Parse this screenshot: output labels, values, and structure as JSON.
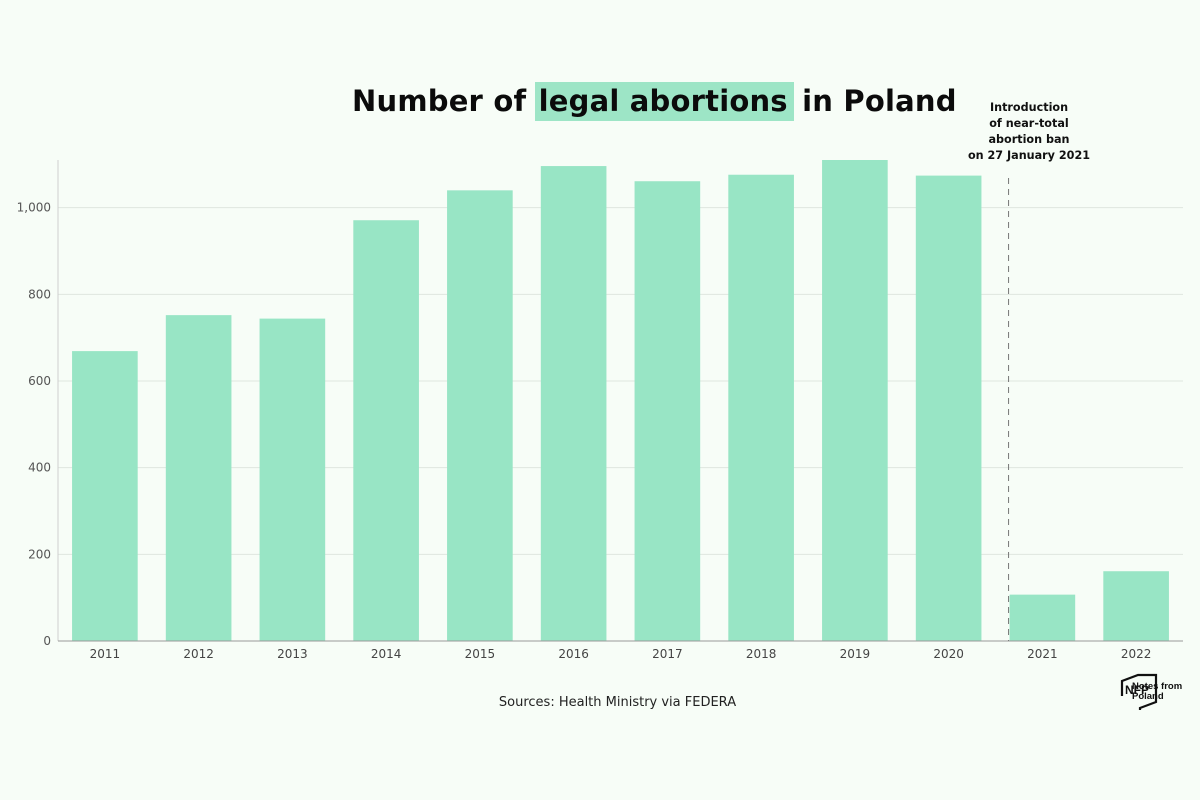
{
  "title": {
    "prefix": "Number of",
    "highlight": "legal abortions",
    "suffix": "in Poland"
  },
  "annotation": {
    "lines": [
      "Introduction",
      "of near-total",
      "abortion ban",
      "on 27 January 2021"
    ],
    "position_year": "2021"
  },
  "source": "Sources: Health Ministry via FEDERA",
  "logo": {
    "mark": "NFP",
    "text_lines": [
      "Notes from",
      "Poland"
    ]
  },
  "colors": {
    "bar": "#98e5c5",
    "highlight": "#9de5c6",
    "grid": "#dfe6df",
    "axis": "#999999",
    "background": "#f7fdf7"
  },
  "chart_data": {
    "type": "bar",
    "categories": [
      "2011",
      "2012",
      "2013",
      "2014",
      "2015",
      "2016",
      "2017",
      "2018",
      "2019",
      "2020",
      "2021",
      "2022"
    ],
    "values": [
      669,
      752,
      744,
      971,
      1040,
      1096,
      1061,
      1076,
      1110,
      1074,
      107,
      161
    ],
    "yticks": [
      0,
      200,
      400,
      600,
      800,
      1000
    ],
    "ytick_labels": [
      "0",
      "200",
      "400",
      "600",
      "800",
      "1,000"
    ],
    "ylim": [
      0,
      1110
    ],
    "grid": true,
    "xlabel": "",
    "ylabel": ""
  }
}
